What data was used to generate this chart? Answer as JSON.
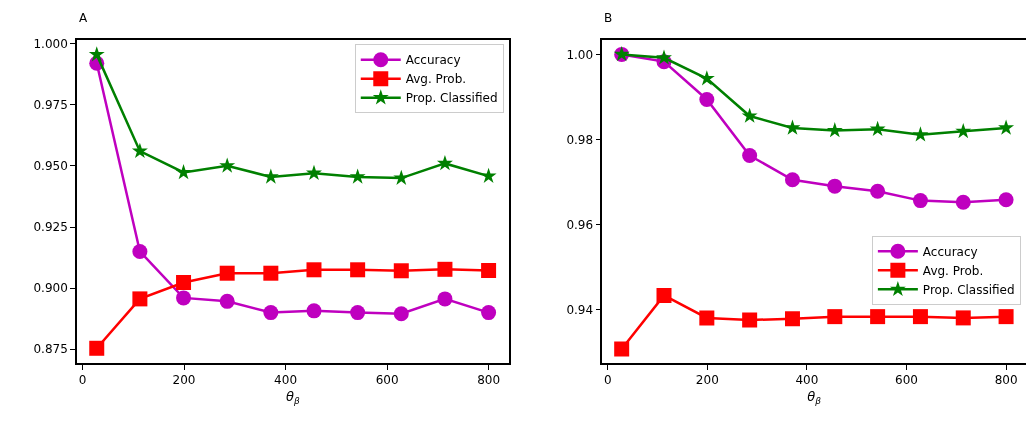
{
  "chart_data": [
    {
      "type": "line",
      "title": "A",
      "xlabel": "θ$_{β}$",
      "x": [
        28,
        113,
        199,
        285,
        371,
        456,
        542,
        628,
        714,
        800
      ],
      "xlim": [
        -11,
        840
      ],
      "xticks": [
        0,
        200,
        400,
        600,
        800
      ],
      "ylim": [
        0.8694,
        1.0015
      ],
      "yticks": [
        {
          "value": 0.875,
          "label": "0.875"
        },
        {
          "value": 0.9,
          "label": "0.900"
        },
        {
          "value": 0.925,
          "label": "0.925"
        },
        {
          "value": 0.95,
          "label": "0.950"
        },
        {
          "value": 0.975,
          "label": "0.975"
        },
        {
          "value": 1.0,
          "label": "1.000"
        }
      ],
      "legend": "top right",
      "line_style": "solid",
      "series": [
        {
          "name": "Accuracy",
          "color": "#bf00bf",
          "marker": "circle",
          "values": [
            0.992,
            0.915,
            0.896,
            0.8946,
            0.89,
            0.8907,
            0.89,
            0.8895,
            0.8956,
            0.89
          ]
        },
        {
          "name": "Avg. Prob.",
          "color": "#ff0000",
          "marker": "square",
          "values": [
            0.8754,
            0.8956,
            0.9023,
            0.9061,
            0.9061,
            0.9075,
            0.9075,
            0.9071,
            0.9077,
            0.9072
          ]
        },
        {
          "name": "Prop. Classified",
          "color": "#008000",
          "marker": "star",
          "values": [
            0.9955,
            0.956,
            0.9473,
            0.95,
            0.9455,
            0.947,
            0.9455,
            0.945,
            0.951,
            0.9458
          ]
        }
      ]
    },
    {
      "type": "line",
      "title": "B",
      "xlabel": "θ$_{β}$",
      "x": [
        28,
        113,
        199,
        285,
        371,
        456,
        542,
        628,
        714,
        800
      ],
      "xlim": [
        -11,
        840
      ],
      "xticks": [
        0,
        200,
        400,
        600,
        800
      ],
      "ylim": [
        0.9274,
        1.0034
      ],
      "yticks": [
        {
          "value": 0.94,
          "label": "0.94"
        },
        {
          "value": 0.96,
          "label": "0.96"
        },
        {
          "value": 0.98,
          "label": "0.98"
        },
        {
          "value": 1.0,
          "label": "1.00"
        }
      ],
      "legend": "bottom right",
      "line_style": "solid",
      "series": [
        {
          "name": "Accuracy",
          "color": "#bf00bf",
          "marker": "circle",
          "values": [
            1.0,
            0.9983,
            0.9894,
            0.9762,
            0.9705,
            0.969,
            0.9678,
            0.9656,
            0.9652,
            0.9658
          ]
        },
        {
          "name": "Avg. Prob.",
          "color": "#ff0000",
          "marker": "square",
          "values": [
            0.9307,
            0.9433,
            0.938,
            0.9375,
            0.9378,
            0.9383,
            0.9383,
            0.9383,
            0.938,
            0.9383
          ]
        },
        {
          "name": "Prop. Classified",
          "color": "#008000",
          "marker": "star",
          "values": [
            1.0,
            0.9992,
            0.9943,
            0.9855,
            0.9827,
            0.9821,
            0.9824,
            0.9811,
            0.9819,
            0.9827
          ]
        }
      ]
    }
  ]
}
